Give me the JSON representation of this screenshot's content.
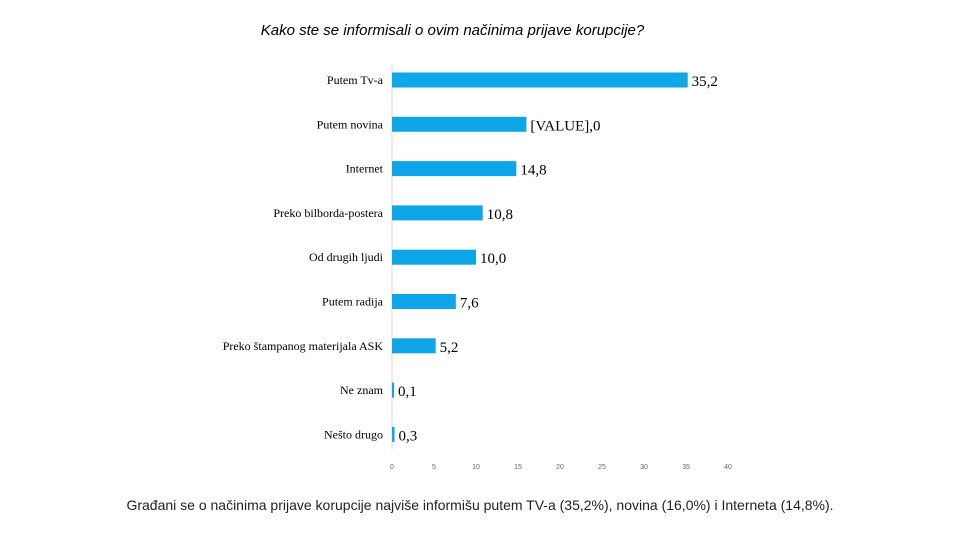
{
  "chart_data": {
    "type": "bar",
    "orientation": "horizontal",
    "title": "Kako ste se informisali o ovim načinima prijave korupcije?",
    "categories": [
      "Putem Tv-a",
      "Putem novina",
      "Internet",
      "Preko bilborda-postera",
      "Od drugih ljudi",
      "Putem radija",
      "Preko štampanog materijala ASK",
      "Ne znam",
      "Nešto drugo"
    ],
    "values": [
      35.2,
      16.0,
      14.8,
      10.8,
      10.0,
      7.6,
      5.2,
      0.1,
      0.3
    ],
    "data_labels": [
      "35,2",
      "[VALUE],0",
      "14,8",
      "10,8",
      "10,0",
      "7,6",
      "5,2",
      "0,1",
      "0,3"
    ],
    "xlim": [
      0,
      40
    ],
    "x_ticks": [
      "0",
      "5",
      "10",
      "15",
      "20",
      "25",
      "30",
      "35",
      "40"
    ],
    "grid": false,
    "legend": "none",
    "bar_color": "#0ea5e9"
  },
  "caption": "Građani se o načinima prijave korupcije najviše informišu putem TV-a (35,2%), novina (16,0%) i Interneta (14,8%)."
}
